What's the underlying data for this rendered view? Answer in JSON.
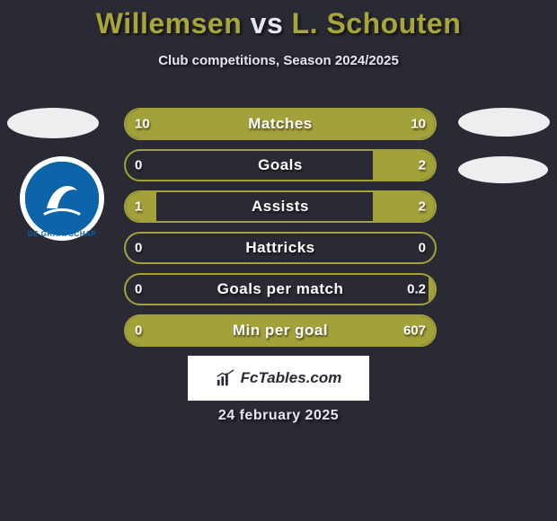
{
  "background_color": "#2a2a35",
  "title": {
    "player1": "Willemsen",
    "vs": "vs",
    "player2": "L. Schouten",
    "highlight_color": "#a8a63a",
    "text_color": "#e6e6f0",
    "fontsize": 32
  },
  "subtitle": {
    "text": "Club competitions, Season 2024/2025",
    "fontsize": 15,
    "color": "#e6e6f0"
  },
  "club_badge": {
    "label": "DE GRAAFSCHAP",
    "bg_color": "#0d64a8",
    "ring_color": "#ffffff",
    "glyph_color": "#ffffff"
  },
  "bars": {
    "track_border_color": "#a3a13a",
    "fill_color": "#a3a13a",
    "text_color": "#ffffff",
    "label_fontsize": 17,
    "value_fontsize": 15,
    "rows": [
      {
        "label": "Matches",
        "left_val": "10",
        "right_val": "10",
        "left_pct": 50,
        "right_pct": 50
      },
      {
        "label": "Goals",
        "left_val": "0",
        "right_val": "2",
        "left_pct": 0,
        "right_pct": 20
      },
      {
        "label": "Assists",
        "left_val": "1",
        "right_val": "2",
        "left_pct": 10,
        "right_pct": 20
      },
      {
        "label": "Hattricks",
        "left_val": "0",
        "right_val": "0",
        "left_pct": 0,
        "right_pct": 0
      },
      {
        "label": "Goals per match",
        "left_val": "0",
        "right_val": "0.2",
        "left_pct": 0,
        "right_pct": 2
      },
      {
        "label": "Min per goal",
        "left_val": "0",
        "right_val": "607",
        "left_pct": 0,
        "right_pct": 100
      }
    ]
  },
  "footer_badge": {
    "text": "FcTables.com",
    "bg_color": "#ffffff",
    "text_color": "#2a2a35",
    "fontsize": 17
  },
  "footer_date": {
    "text": "24 february 2025",
    "color": "#e6e6f0",
    "fontsize": 16
  }
}
